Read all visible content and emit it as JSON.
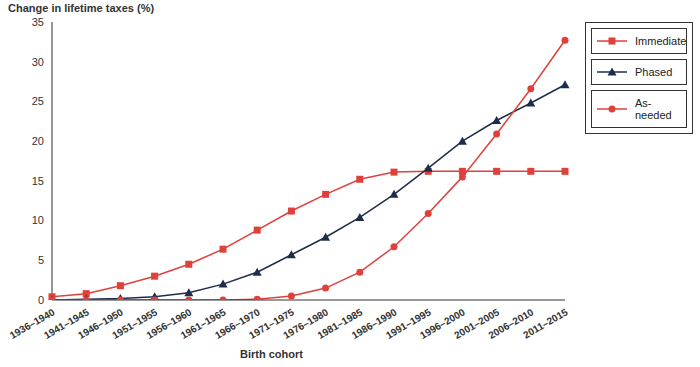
{
  "chart_data": {
    "type": "line",
    "y_label": "Change in lifetime taxes (%)",
    "x_label": "Birth cohort",
    "categories": [
      "1936–1940",
      "1941–1945",
      "1946–1950",
      "1951–1955",
      "1956–1960",
      "1961–1965",
      "1966–1970",
      "1971–1975",
      "1976–1980",
      "1981–1985",
      "1986–1990",
      "1991–1995",
      "1996–2000",
      "2001–2005",
      "2006–2010",
      "2011–2015"
    ],
    "series": [
      {
        "name": "Immediate",
        "color": "#e0403a",
        "marker": "square",
        "values": [
          0.4,
          0.8,
          1.8,
          3.0,
          4.5,
          6.4,
          8.8,
          11.2,
          13.3,
          15.2,
          16.1,
          16.2,
          16.2,
          16.2,
          16.2,
          16.2
        ]
      },
      {
        "name": "Phased",
        "color": "#1f2d4d",
        "marker": "triangle",
        "values": [
          0,
          0.1,
          0.2,
          0.4,
          0.9,
          2.0,
          3.5,
          5.7,
          7.9,
          10.4,
          13.3,
          16.6,
          20.0,
          22.6,
          24.8,
          27.1
        ]
      },
      {
        "name": "As-needed",
        "color": "#e0403a",
        "marker": "circle",
        "values": [
          0,
          0,
          0,
          0,
          0,
          0,
          0.1,
          0.5,
          1.5,
          3.5,
          6.7,
          10.9,
          15.5,
          20.9,
          26.6,
          32.7
        ]
      }
    ],
    "ylim": [
      0,
      35
    ],
    "yticks": [
      0,
      5,
      10,
      15,
      20,
      25,
      30,
      35
    ],
    "grid": false,
    "legend": "right"
  }
}
